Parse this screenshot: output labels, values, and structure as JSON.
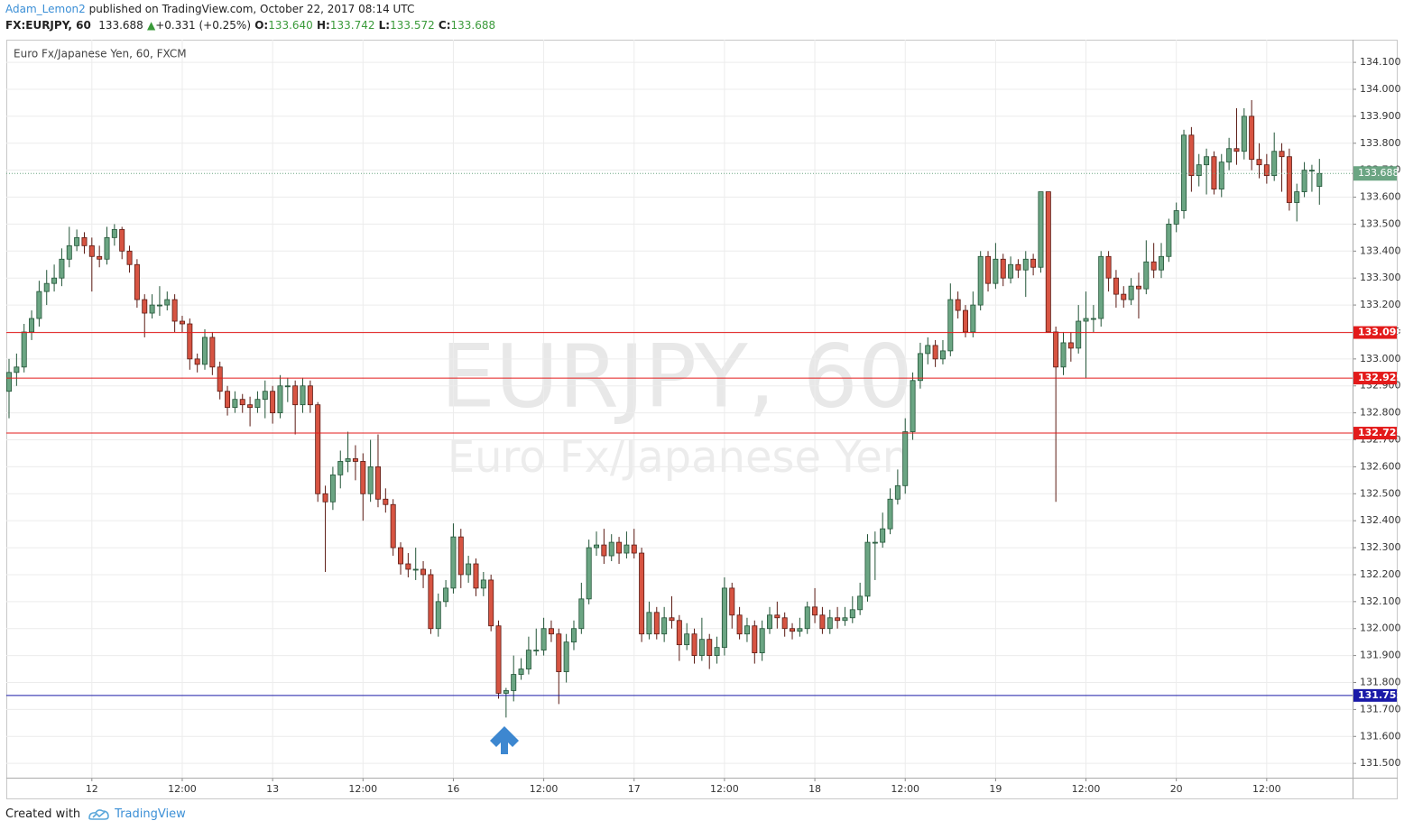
{
  "header": {
    "author": "Adam_Lemon2",
    "published": "published on TradingView.com, October 22, 2017 08:14 UTC",
    "symbol": "FX:EURJPY, 60",
    "last": "133.688",
    "arrow": "▲",
    "change": "+0.331 (+0.25%)",
    "o_label": "O:",
    "o": "133.640",
    "h_label": "H:",
    "h": "133.742",
    "l_label": "L:",
    "l": "133.572",
    "c_label": "C:",
    "c": "133.688"
  },
  "footer": {
    "created": "Created with",
    "brand": "TradingView"
  },
  "chart_data": {
    "type": "candlestick",
    "legend": "Euro Fx/Japanese Yen, 60, FXCM",
    "watermark": "EURJPY, 60",
    "watermark_sub": "Euro Fx/Japanese Yen",
    "up_color": "#6ba583",
    "down_color": "#d75442",
    "grid": true,
    "ylim": [
      131.447,
      134.184
    ],
    "xlim": [
      -0.36,
      178.4
    ],
    "yticks": [
      {
        "value": 131.5,
        "label": "131.500"
      },
      {
        "value": 131.6,
        "label": "131.600"
      },
      {
        "value": 131.7,
        "label": "131.700"
      },
      {
        "value": 131.8,
        "label": "131.800"
      },
      {
        "value": 131.9,
        "label": "131.900"
      },
      {
        "value": 132.0,
        "label": "132.000"
      },
      {
        "value": 132.1,
        "label": "132.100"
      },
      {
        "value": 132.2,
        "label": "132.200"
      },
      {
        "value": 132.3,
        "label": "132.300"
      },
      {
        "value": 132.4,
        "label": "132.400"
      },
      {
        "value": 132.5,
        "label": "132.500"
      },
      {
        "value": 132.6,
        "label": "132.600"
      },
      {
        "value": 132.7,
        "label": "132.700"
      },
      {
        "value": 132.8,
        "label": "132.800"
      },
      {
        "value": 132.9,
        "label": "132.900"
      },
      {
        "value": 133.0,
        "label": "133.000"
      },
      {
        "value": 133.1,
        "label": "133.100"
      },
      {
        "value": 133.2,
        "label": "133.200"
      },
      {
        "value": 133.3,
        "label": "133.300"
      },
      {
        "value": 133.4,
        "label": "133.400"
      },
      {
        "value": 133.5,
        "label": "133.500"
      },
      {
        "value": 133.6,
        "label": "133.600"
      },
      {
        "value": 133.7,
        "label": "133.700"
      },
      {
        "value": 133.8,
        "label": "133.800"
      },
      {
        "value": 133.9,
        "label": "133.900"
      },
      {
        "value": 134.0,
        "label": "134.000"
      },
      {
        "value": 134.1,
        "label": "134.100"
      }
    ],
    "xticks": [
      {
        "value": 11,
        "label": "12"
      },
      {
        "value": 23,
        "label": "12:00"
      },
      {
        "value": 35,
        "label": "13"
      },
      {
        "value": 47,
        "label": "12:00"
      },
      {
        "value": 59,
        "label": "16"
      },
      {
        "value": 71,
        "label": "12:00"
      },
      {
        "value": 83,
        "label": "17"
      },
      {
        "value": 95,
        "label": "12:00"
      },
      {
        "value": 107,
        "label": "18"
      },
      {
        "value": 119,
        "label": "12:00"
      },
      {
        "value": 131,
        "label": "19"
      },
      {
        "value": 143,
        "label": "12:00"
      },
      {
        "value": 155,
        "label": "20"
      },
      {
        "value": 167,
        "label": "12:00"
      }
    ],
    "levels": [
      {
        "value": 133.098,
        "color": "#e31b1b"
      },
      {
        "value": 132.929,
        "color": "#e31b1b"
      },
      {
        "value": 132.725,
        "color": "#e31b1b"
      },
      {
        "value": 131.752,
        "color": "#1a1aa8"
      }
    ],
    "last_price": 133.688,
    "ohlc": [
      [
        132.88,
        133.0,
        132.78,
        132.95
      ],
      [
        132.95,
        133.02,
        132.9,
        132.97
      ],
      [
        132.97,
        133.13,
        132.95,
        133.1
      ],
      [
        133.1,
        133.18,
        133.07,
        133.15
      ],
      [
        133.15,
        133.29,
        133.12,
        133.25
      ],
      [
        133.25,
        133.33,
        133.2,
        133.28
      ],
      [
        133.28,
        133.35,
        133.25,
        133.3
      ],
      [
        133.3,
        133.41,
        133.27,
        133.37
      ],
      [
        133.37,
        133.49,
        133.34,
        133.42
      ],
      [
        133.42,
        133.48,
        133.4,
        133.45
      ],
      [
        133.45,
        133.47,
        133.39,
        133.42
      ],
      [
        133.42,
        133.45,
        133.25,
        133.38
      ],
      [
        133.38,
        133.42,
        133.34,
        133.37
      ],
      [
        133.37,
        133.49,
        133.35,
        133.45
      ],
      [
        133.45,
        133.5,
        133.42,
        133.48
      ],
      [
        133.48,
        133.49,
        133.37,
        133.4
      ],
      [
        133.4,
        133.42,
        133.32,
        133.35
      ],
      [
        133.35,
        133.37,
        133.19,
        133.22
      ],
      [
        133.22,
        133.24,
        133.08,
        133.17
      ],
      [
        133.17,
        133.24,
        133.15,
        133.2
      ],
      [
        133.2,
        133.27,
        133.16,
        133.2
      ],
      [
        133.2,
        133.25,
        133.18,
        133.22
      ],
      [
        133.22,
        133.24,
        133.1,
        133.14
      ],
      [
        133.14,
        133.16,
        133.1,
        133.13
      ],
      [
        133.13,
        133.15,
        132.96,
        133.0
      ],
      [
        133.0,
        133.02,
        132.95,
        132.98
      ],
      [
        132.98,
        133.11,
        132.96,
        133.08
      ],
      [
        133.08,
        133.1,
        132.94,
        132.97
      ],
      [
        132.97,
        132.99,
        132.85,
        132.88
      ],
      [
        132.88,
        132.9,
        132.79,
        132.82
      ],
      [
        132.82,
        132.88,
        132.8,
        132.85
      ],
      [
        132.85,
        132.87,
        132.8,
        132.83
      ],
      [
        132.83,
        132.86,
        132.75,
        132.82
      ],
      [
        132.82,
        132.88,
        132.8,
        132.85
      ],
      [
        132.85,
        132.92,
        132.78,
        132.88
      ],
      [
        132.88,
        132.9,
        132.76,
        132.8
      ],
      [
        132.8,
        132.94,
        132.78,
        132.9
      ],
      [
        132.9,
        132.93,
        132.84,
        132.9
      ],
      [
        132.9,
        132.92,
        132.72,
        132.83
      ],
      [
        132.83,
        132.93,
        132.8,
        132.9
      ],
      [
        132.9,
        132.92,
        132.8,
        132.83
      ],
      [
        132.83,
        132.84,
        132.47,
        132.5
      ],
      [
        132.5,
        132.53,
        132.21,
        132.47
      ],
      [
        132.47,
        132.6,
        132.44,
        132.57
      ],
      [
        132.57,
        132.66,
        132.52,
        132.62
      ],
      [
        132.62,
        132.73,
        132.58,
        132.63
      ],
      [
        132.63,
        132.68,
        132.55,
        132.62
      ],
      [
        132.62,
        132.65,
        132.4,
        132.5
      ],
      [
        132.5,
        132.7,
        132.47,
        132.6
      ],
      [
        132.6,
        132.72,
        132.45,
        132.48
      ],
      [
        132.48,
        132.52,
        132.43,
        132.46
      ],
      [
        132.46,
        132.48,
        132.27,
        132.3
      ],
      [
        132.3,
        132.32,
        132.2,
        132.24
      ],
      [
        132.24,
        132.28,
        132.19,
        132.22
      ],
      [
        132.22,
        132.3,
        132.18,
        132.22
      ],
      [
        132.22,
        132.25,
        132.15,
        132.2
      ],
      [
        132.2,
        132.22,
        131.98,
        132.0
      ],
      [
        132.0,
        132.13,
        131.97,
        132.1
      ],
      [
        132.1,
        132.18,
        132.08,
        132.15
      ],
      [
        132.15,
        132.39,
        132.13,
        132.34
      ],
      [
        132.34,
        132.37,
        132.15,
        132.2
      ],
      [
        132.2,
        132.27,
        132.17,
        132.24
      ],
      [
        132.24,
        132.26,
        132.12,
        132.15
      ],
      [
        132.15,
        132.21,
        132.12,
        132.18
      ],
      [
        132.18,
        132.2,
        131.99,
        132.01
      ],
      [
        132.01,
        132.03,
        131.74,
        131.76
      ],
      [
        131.76,
        131.78,
        131.67,
        131.77
      ],
      [
        131.77,
        131.9,
        131.73,
        131.83
      ],
      [
        131.83,
        131.89,
        131.81,
        131.85
      ],
      [
        131.85,
        131.97,
        131.83,
        131.92
      ],
      [
        131.92,
        132.0,
        131.9,
        131.92
      ],
      [
        131.92,
        132.04,
        131.9,
        132.0
      ],
      [
        132.0,
        132.03,
        131.95,
        131.98
      ],
      [
        131.98,
        132.0,
        131.72,
        131.84
      ],
      [
        131.84,
        131.98,
        131.8,
        131.95
      ],
      [
        131.95,
        132.03,
        131.92,
        132.0
      ],
      [
        132.0,
        132.17,
        131.98,
        132.11
      ],
      [
        132.11,
        132.33,
        132.09,
        132.3
      ],
      [
        132.3,
        132.36,
        132.27,
        132.31
      ],
      [
        132.31,
        132.37,
        132.24,
        132.27
      ],
      [
        132.27,
        132.35,
        132.25,
        132.32
      ],
      [
        132.32,
        132.34,
        132.24,
        132.28
      ],
      [
        132.28,
        132.36,
        132.26,
        132.31
      ],
      [
        132.31,
        132.37,
        132.26,
        132.28
      ],
      [
        132.28,
        132.3,
        131.95,
        131.98
      ],
      [
        131.98,
        132.1,
        131.96,
        132.06
      ],
      [
        132.06,
        132.08,
        131.96,
        131.98
      ],
      [
        131.98,
        132.08,
        131.95,
        132.04
      ],
      [
        132.04,
        132.12,
        132.0,
        132.03
      ],
      [
        132.03,
        132.05,
        131.88,
        131.94
      ],
      [
        131.94,
        132.02,
        131.92,
        131.98
      ],
      [
        131.98,
        132.0,
        131.87,
        131.9
      ],
      [
        131.9,
        132.04,
        131.88,
        131.96
      ],
      [
        131.96,
        131.98,
        131.85,
        131.9
      ],
      [
        131.9,
        131.97,
        131.87,
        131.93
      ],
      [
        131.93,
        132.19,
        131.9,
        132.15
      ],
      [
        132.15,
        132.17,
        132.0,
        132.05
      ],
      [
        132.05,
        132.08,
        131.96,
        131.98
      ],
      [
        131.98,
        132.04,
        131.95,
        132.01
      ],
      [
        132.01,
        132.03,
        131.87,
        131.91
      ],
      [
        131.91,
        132.03,
        131.88,
        132.0
      ],
      [
        132.0,
        132.08,
        131.98,
        132.05
      ],
      [
        132.05,
        132.1,
        132.0,
        132.04
      ],
      [
        132.04,
        132.06,
        131.97,
        132.0
      ],
      [
        132.0,
        132.02,
        131.96,
        131.99
      ],
      [
        131.99,
        132.04,
        131.97,
        132.0
      ],
      [
        132.0,
        132.1,
        131.98,
        132.08
      ],
      [
        132.08,
        132.15,
        132.02,
        132.05
      ],
      [
        132.05,
        132.08,
        131.98,
        132.0
      ],
      [
        132.0,
        132.07,
        131.98,
        132.04
      ],
      [
        132.04,
        132.08,
        132.0,
        132.03
      ],
      [
        132.03,
        132.08,
        132.01,
        132.04
      ],
      [
        132.04,
        132.12,
        132.02,
        132.07
      ],
      [
        132.07,
        132.17,
        132.05,
        132.12
      ],
      [
        132.12,
        132.35,
        132.1,
        132.32
      ],
      [
        132.32,
        132.36,
        132.18,
        132.32
      ],
      [
        132.32,
        132.43,
        132.3,
        132.37
      ],
      [
        132.37,
        132.52,
        132.35,
        132.48
      ],
      [
        132.48,
        132.59,
        132.46,
        132.53
      ],
      [
        132.53,
        132.78,
        132.5,
        132.73
      ],
      [
        132.73,
        132.95,
        132.7,
        132.92
      ],
      [
        132.92,
        133.06,
        132.89,
        133.02
      ],
      [
        133.02,
        133.08,
        132.98,
        133.05
      ],
      [
        133.05,
        133.07,
        132.97,
        133.0
      ],
      [
        133.0,
        133.07,
        132.98,
        133.03
      ],
      [
        133.03,
        133.28,
        133.01,
        133.22
      ],
      [
        133.22,
        133.25,
        133.15,
        133.18
      ],
      [
        133.18,
        133.2,
        133.08,
        133.1
      ],
      [
        133.1,
        133.25,
        133.08,
        133.2
      ],
      [
        133.2,
        133.4,
        133.18,
        133.38
      ],
      [
        133.38,
        133.4,
        133.25,
        133.28
      ],
      [
        133.28,
        133.43,
        133.26,
        133.37
      ],
      [
        133.37,
        133.39,
        133.27,
        133.3
      ],
      [
        133.3,
        133.38,
        133.28,
        133.35
      ],
      [
        133.35,
        133.37,
        133.3,
        133.33
      ],
      [
        133.33,
        133.4,
        133.23,
        133.37
      ],
      [
        133.37,
        133.39,
        133.31,
        133.34
      ],
      [
        133.34,
        133.62,
        133.32,
        133.62
      ],
      [
        133.62,
        133.62,
        133.1,
        133.1
      ],
      [
        133.1,
        133.12,
        132.47,
        132.97
      ],
      [
        132.97,
        133.1,
        132.94,
        133.06
      ],
      [
        133.06,
        133.1,
        132.99,
        133.04
      ],
      [
        133.04,
        133.2,
        133.02,
        133.14
      ],
      [
        133.14,
        133.25,
        132.93,
        133.15
      ],
      [
        133.15,
        133.2,
        133.1,
        133.15
      ],
      [
        133.15,
        133.4,
        133.12,
        133.38
      ],
      [
        133.38,
        133.4,
        133.25,
        133.3
      ],
      [
        133.3,
        133.33,
        133.19,
        133.24
      ],
      [
        133.24,
        133.27,
        133.19,
        133.22
      ],
      [
        133.22,
        133.3,
        133.2,
        133.27
      ],
      [
        133.27,
        133.32,
        133.15,
        133.26
      ],
      [
        133.26,
        133.44,
        133.24,
        133.36
      ],
      [
        133.36,
        133.43,
        133.3,
        133.33
      ],
      [
        133.33,
        133.43,
        133.3,
        133.38
      ],
      [
        133.38,
        133.52,
        133.36,
        133.5
      ],
      [
        133.5,
        133.58,
        133.47,
        133.55
      ],
      [
        133.55,
        133.85,
        133.52,
        133.83
      ],
      [
        133.83,
        133.86,
        133.62,
        133.68
      ],
      [
        133.68,
        133.76,
        133.64,
        133.72
      ],
      [
        133.72,
        133.78,
        133.61,
        133.75
      ],
      [
        133.75,
        133.77,
        133.61,
        133.63
      ],
      [
        133.63,
        133.76,
        133.6,
        133.73
      ],
      [
        133.73,
        133.82,
        133.7,
        133.78
      ],
      [
        133.78,
        133.93,
        133.72,
        133.77
      ],
      [
        133.77,
        133.93,
        133.74,
        133.9
      ],
      [
        133.9,
        133.96,
        133.7,
        133.74
      ],
      [
        133.74,
        133.8,
        133.67,
        133.72
      ],
      [
        133.72,
        133.76,
        133.65,
        133.68
      ],
      [
        133.68,
        133.84,
        133.66,
        133.77
      ],
      [
        133.77,
        133.8,
        133.62,
        133.75
      ],
      [
        133.75,
        133.78,
        133.55,
        133.58
      ],
      [
        133.58,
        133.65,
        133.51,
        133.62
      ],
      [
        133.62,
        133.73,
        133.6,
        133.7
      ],
      [
        133.7,
        133.72,
        133.62,
        133.7
      ],
      [
        133.64,
        133.742,
        133.572,
        133.688
      ]
    ]
  }
}
